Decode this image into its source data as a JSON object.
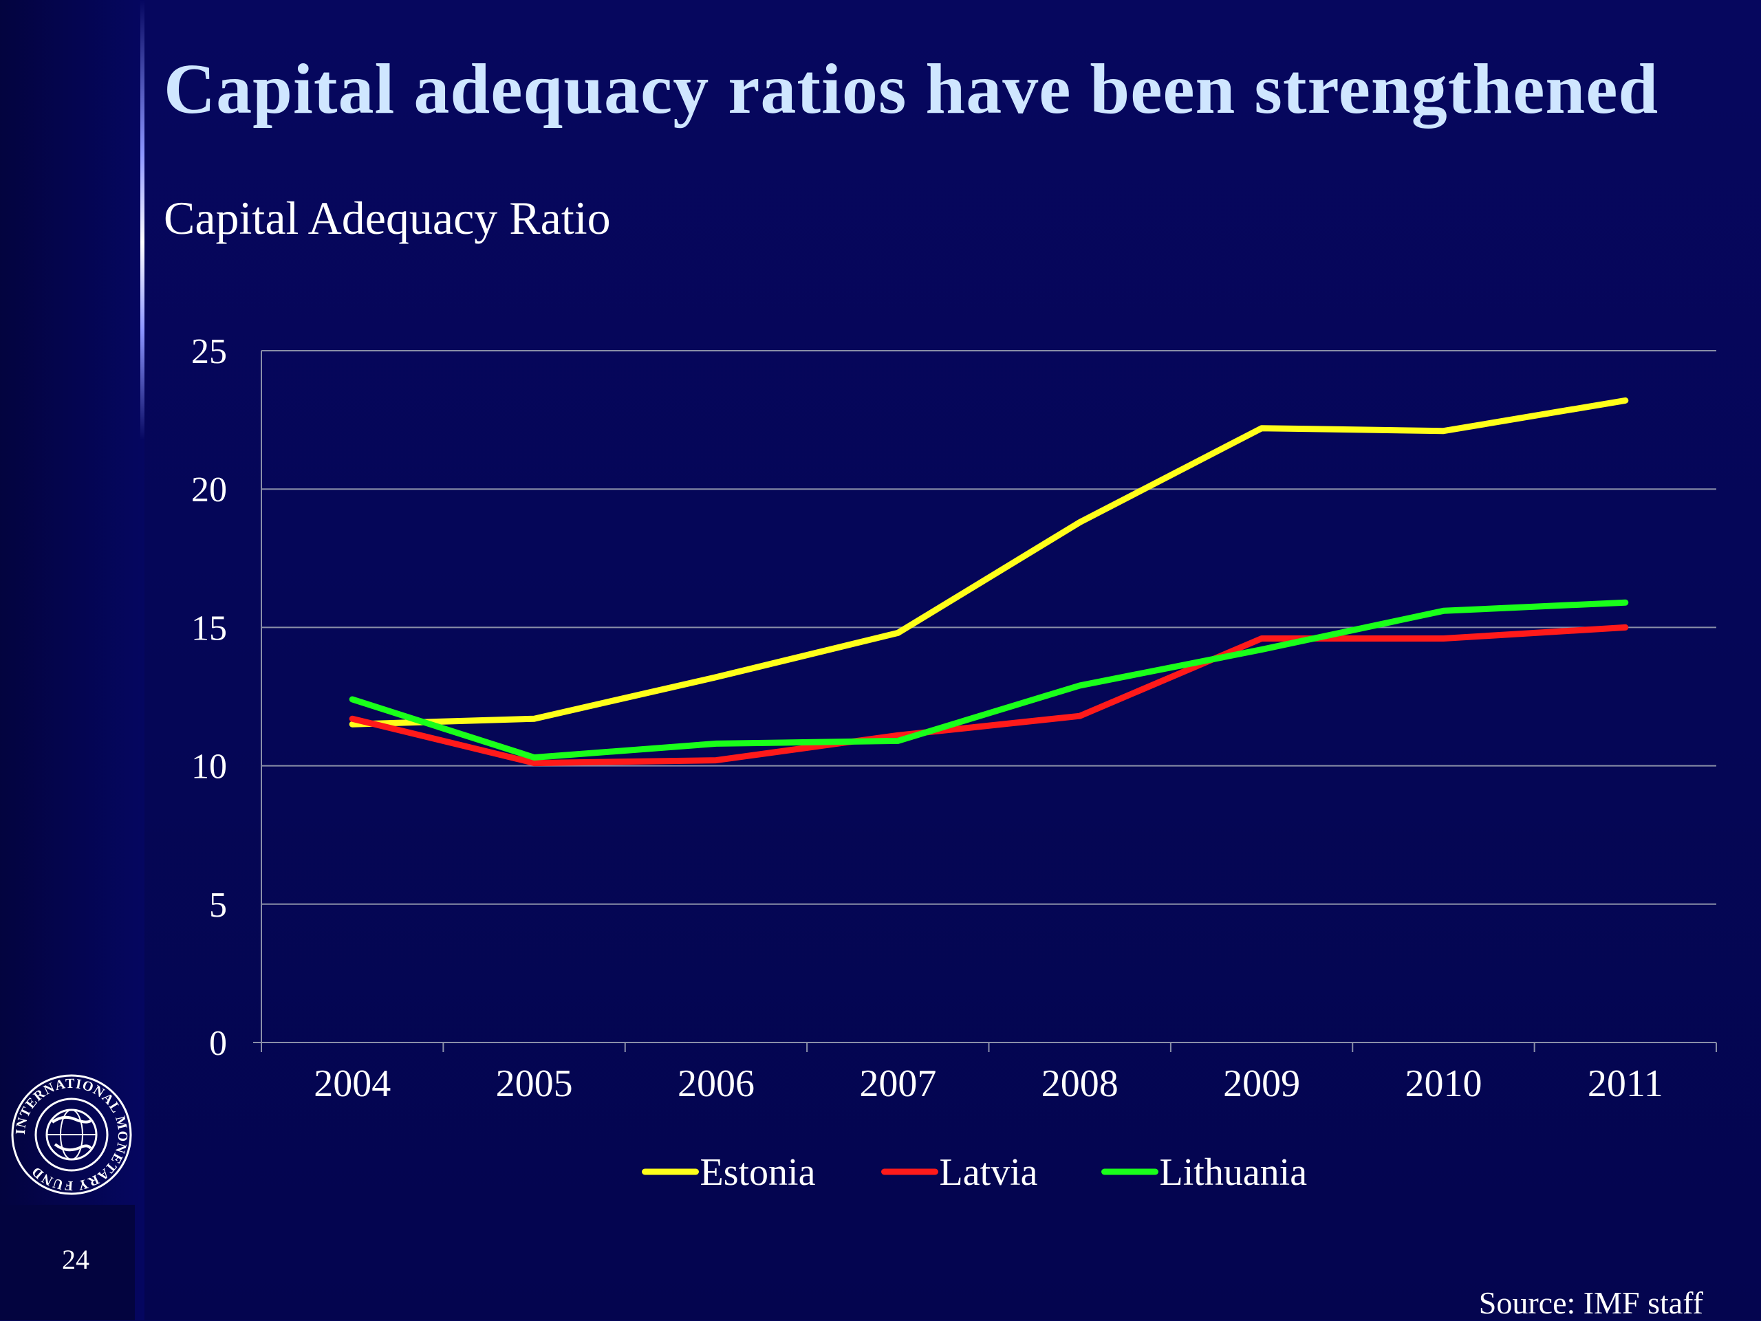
{
  "slide": {
    "title": "Capital adequacy ratios have been strengthened",
    "page_number": "24",
    "source": "Source: IMF staff",
    "logo_icon": "imf-seal-icon",
    "logo_text": "INTERNATIONAL MONETARY FUND"
  },
  "colors": {
    "background": "#05065a",
    "title": "#cfe6ff",
    "gridline": "#8a8fa8",
    "estonia": "#ffff1a",
    "latvia": "#ff1a1a",
    "lithuania": "#1aff1a"
  },
  "chart_data": {
    "type": "line",
    "title": "Capital Adequacy Ratio",
    "xlabel": "",
    "ylabel": "",
    "categories": [
      "2004",
      "2005",
      "2006",
      "2007",
      "2008",
      "2009",
      "2010",
      "2011"
    ],
    "yticks": [
      "0",
      "5",
      "10",
      "15",
      "20",
      "25"
    ],
    "ylim": [
      0,
      25
    ],
    "grid": true,
    "legend_position": "bottom",
    "series": [
      {
        "name": "Estonia",
        "color": "#ffff1a",
        "values": [
          11.5,
          11.7,
          13.2,
          14.8,
          18.8,
          22.2,
          22.1,
          23.2
        ]
      },
      {
        "name": "Latvia",
        "color": "#ff1a1a",
        "values": [
          11.7,
          10.1,
          10.2,
          11.1,
          11.8,
          14.6,
          14.6,
          15.0
        ]
      },
      {
        "name": "Lithuania",
        "color": "#1aff1a",
        "values": [
          12.4,
          10.3,
          10.8,
          10.9,
          12.9,
          14.2,
          15.6,
          15.9
        ]
      }
    ]
  }
}
